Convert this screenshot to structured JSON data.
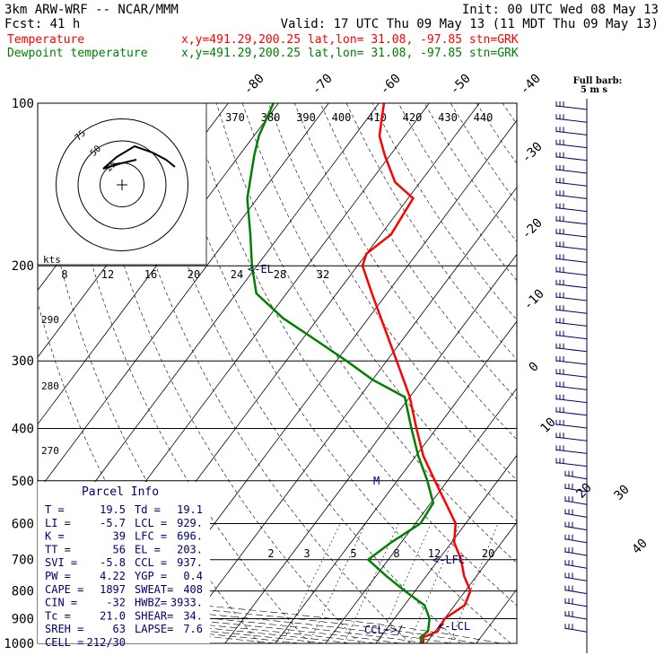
{
  "header": {
    "left_line1": "3km ARW-WRF -- NCAR/MMM",
    "left_line2": "Fcst:    41 h",
    "right_line1": "Init: 00 UTC Wed 08 May 13",
    "right_line2": "Valid: 17 UTC Thu 09 May 13 (11 MDT Thu 09 May 13)"
  },
  "legend": [
    {
      "label": "Temperature",
      "info": "x,y=491.29,200.25   lat,lon= 31.08, -97.85   stn=GRK",
      "color": "#ff0000"
    },
    {
      "label": "Dewpoint temperature",
      "info": "x,y=491.29,200.25   lat,lon= 31.08, -97.85   stn=GRK",
      "color": "#008000"
    }
  ],
  "wind_key": {
    "line1": "Full barb:",
    "line2": "5 m s"
  },
  "chart_data": {
    "type": "line",
    "title": "Skew-T log-P sounding",
    "ylabel": "Pressure (hPa)",
    "pressure_levels": [
      100,
      200,
      300,
      400,
      500,
      600,
      700,
      800,
      900,
      1000
    ],
    "isotherm_labels": [
      "-80",
      "-70",
      "-60",
      "-50",
      "-40",
      "-30",
      "-20",
      "-10",
      "0",
      "10",
      "20",
      "30",
      "40"
    ],
    "mixing_ratio_labels": [
      "2",
      "3",
      "5",
      "8",
      "12",
      "20"
    ],
    "theta_e_labels": [
      "290",
      "280",
      "270"
    ],
    "thetae_scale": [
      "370",
      "380",
      "390",
      "400",
      "410",
      "420",
      "430",
      "440"
    ],
    "hodo_scale": [
      "8",
      "12",
      "16",
      "20",
      "24",
      "28",
      "32"
    ],
    "hodo_unit": "kts",
    "hodo_ring_labels": [
      "75",
      "50",
      "25"
    ],
    "annotations": {
      "el": "<-EL",
      "lfc": "<-LFC",
      "ccl": "CCL->/",
      "lcl": "<-LCL",
      "m": "M"
    },
    "series": [
      {
        "name": "Temperature",
        "color": "#ff0000",
        "points": [
          [
            1000,
            19.5
          ],
          [
            975,
            18.5
          ],
          [
            950,
            20.5
          ],
          [
            900,
            20.0
          ],
          [
            850,
            22.0
          ],
          [
            800,
            21.0
          ],
          [
            750,
            17.5
          ],
          [
            700,
            14.5
          ],
          [
            650,
            10.5
          ],
          [
            600,
            8.0
          ],
          [
            550,
            3.0
          ],
          [
            500,
            -2.5
          ],
          [
            450,
            -8.5
          ],
          [
            400,
            -14.0
          ],
          [
            350,
            -20.0
          ],
          [
            300,
            -28.0
          ],
          [
            250,
            -37.5
          ],
          [
            225,
            -43.0
          ],
          [
            200,
            -49.0
          ],
          [
            190,
            -50.0
          ],
          [
            175,
            -48.0
          ],
          [
            150,
            -49.0
          ],
          [
            140,
            -55.0
          ],
          [
            125,
            -61.0
          ],
          [
            115,
            -65.0
          ],
          [
            100,
            -69.0
          ]
        ]
      },
      {
        "name": "Dewpoint temperature",
        "color": "#008000",
        "points": [
          [
            1000,
            19.1
          ],
          [
            975,
            18.0
          ],
          [
            950,
            18.6
          ],
          [
            900,
            17.0
          ],
          [
            850,
            14.0
          ],
          [
            800,
            8.0
          ],
          [
            750,
            2.0
          ],
          [
            700,
            -4.0
          ],
          [
            650,
            -2.0
          ],
          [
            600,
            1.0
          ],
          [
            550,
            0.5
          ],
          [
            500,
            -4.0
          ],
          [
            450,
            -9.5
          ],
          [
            400,
            -15.0
          ],
          [
            350,
            -21.0
          ],
          [
            325,
            -30.0
          ],
          [
            300,
            -38.0
          ],
          [
            275,
            -47.0
          ],
          [
            250,
            -57.0
          ],
          [
            225,
            -66.0
          ],
          [
            200,
            -71.0
          ],
          [
            175,
            -76.0
          ],
          [
            150,
            -82.0
          ],
          [
            125,
            -87.0
          ],
          [
            115,
            -89.0
          ],
          [
            100,
            -91.0
          ]
        ]
      }
    ]
  },
  "parcel": {
    "title": "Parcel Info",
    "rows": [
      [
        "T  =",
        "19.5",
        "Td =",
        "19.1"
      ],
      [
        "LI =",
        "-5.7",
        "LCL =",
        "929."
      ],
      [
        "K  =",
        "39",
        "LFC =",
        "696."
      ],
      [
        "TT =",
        "56",
        "EL  =",
        "203."
      ],
      [
        "SVI =",
        "-5.8",
        "CCL =",
        "937."
      ],
      [
        "PW =",
        "4.22",
        "YGP =",
        "0.4"
      ],
      [
        "CAPE =",
        "1897",
        "SWEAT=",
        "408"
      ],
      [
        "CIN =",
        "-32",
        "HWBZ=",
        "3933."
      ],
      [
        "Tc =",
        "21.0",
        "SHEAR=",
        "34."
      ],
      [
        "SREH =",
        "63",
        "LAPSE=",
        "7.6"
      ],
      [
        "CELL =",
        "212/30",
        "",
        ""
      ]
    ]
  }
}
